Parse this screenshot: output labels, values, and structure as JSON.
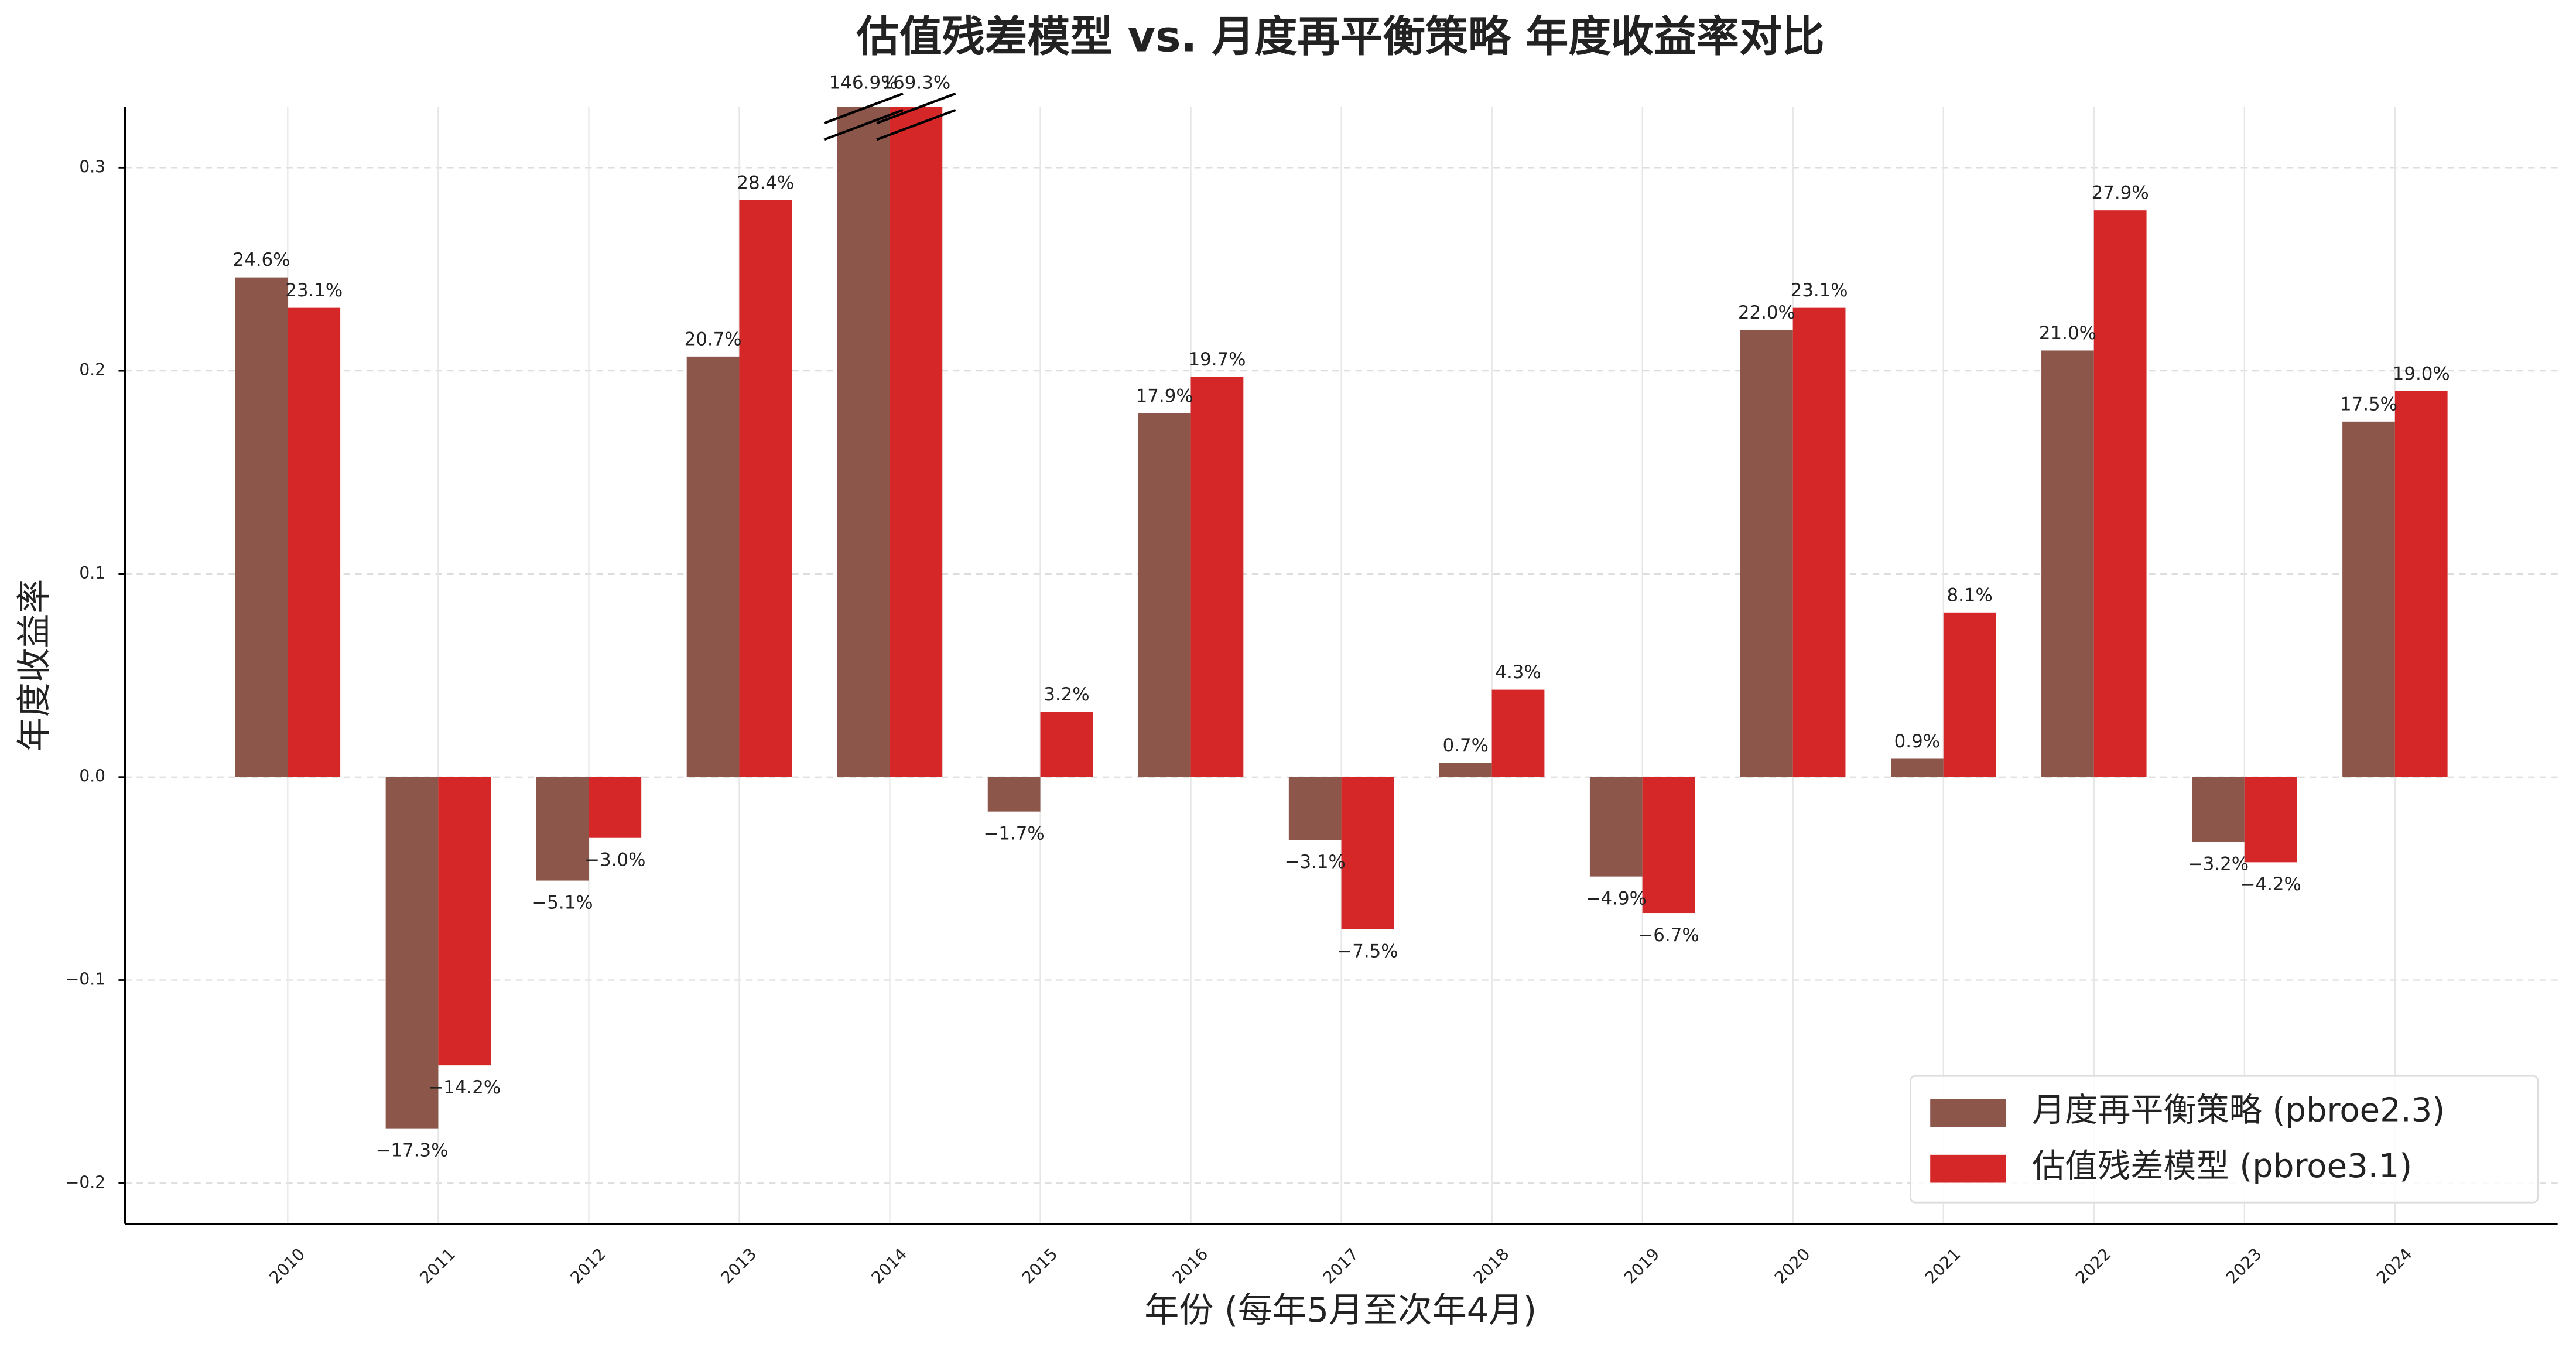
{
  "chart_data": {
    "type": "bar",
    "title": "估值残差模型 vs. 月度再平衡策略 年度收益率对比",
    "xlabel": "年份 (每年5月至次年4月)",
    "ylabel": "年度收益率",
    "categories": [
      "2010",
      "2011",
      "2012",
      "2013",
      "2014",
      "2015",
      "2016",
      "2017",
      "2018",
      "2019",
      "2020",
      "2021",
      "2022",
      "2023",
      "2024"
    ],
    "series": [
      {
        "name": "月度再平衡策略 (pbroe2.3)",
        "color": "#8c564b",
        "values": [
          0.246,
          -0.173,
          -0.051,
          0.207,
          1.469,
          -0.017,
          0.179,
          -0.031,
          0.007,
          -0.049,
          0.22,
          0.009,
          0.21,
          -0.032,
          0.175
        ],
        "value_labels": [
          "24.6%",
          "−17.3%",
          "−5.1%",
          "20.7%",
          "146.9%",
          "−1.7%",
          "17.9%",
          "−3.1%",
          "0.7%",
          "−4.9%",
          "22.0%",
          "0.9%",
          "21.0%",
          "−3.2%",
          "17.5%"
        ]
      },
      {
        "name": "估值残差模型 (pbroe3.1)",
        "color": "#d62728",
        "values": [
          0.231,
          -0.142,
          -0.03,
          0.284,
          1.693,
          0.032,
          0.197,
          -0.075,
          0.043,
          -0.067,
          0.231,
          0.081,
          0.279,
          -0.042,
          0.19
        ],
        "value_labels": [
          "23.1%",
          "−14.2%",
          "−3.0%",
          "28.4%",
          "169.3%",
          "3.2%",
          "19.7%",
          "−7.5%",
          "4.3%",
          "−6.7%",
          "23.1%",
          "8.1%",
          "27.9%",
          "−4.2%",
          "19.0%"
        ]
      }
    ],
    "ylim": [
      -0.22,
      0.33
    ],
    "yticks": [
      {
        "value": -0.2,
        "label": "−0.2"
      },
      {
        "value": -0.1,
        "label": "−0.1"
      },
      {
        "value": 0,
        "label": "0.0"
      },
      0.1,
      0.2,
      0.3
    ],
    "grid": true,
    "legend": "lower right"
  }
}
